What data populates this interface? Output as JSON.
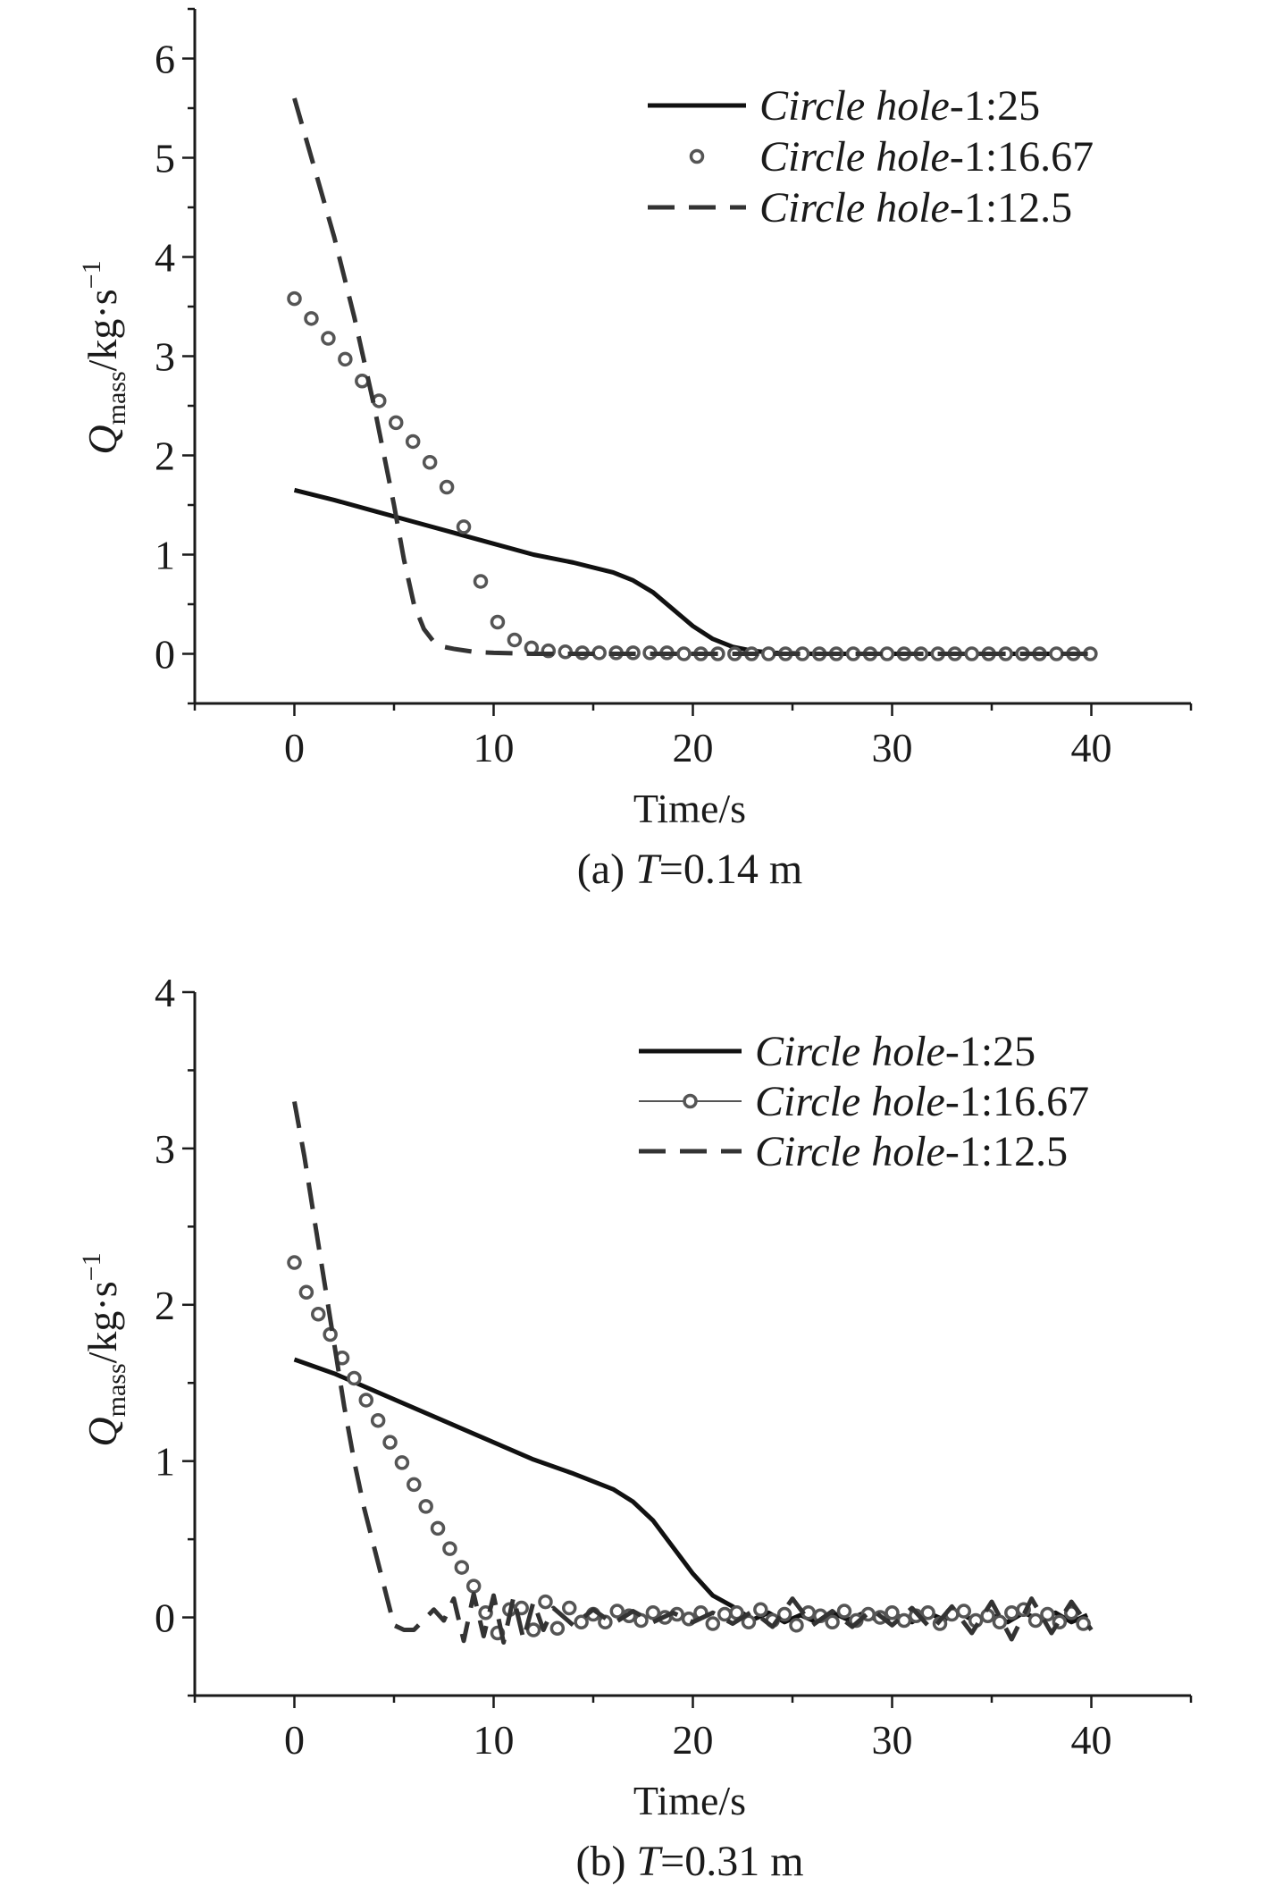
{
  "chart_data": [
    {
      "id": "a",
      "type": "line",
      "caption_prefix": "(a) ",
      "caption_var": "T",
      "caption_suffix": "=0.14 m",
      "xlabel": "Time/s",
      "ylabel": {
        "main": "Q",
        "sub": "mass",
        "unit": "/kg·s",
        "sup": "−1"
      },
      "xlim": [
        -5,
        45
      ],
      "ylim": [
        -0.5,
        6.5
      ],
      "xticks": [
        0,
        10,
        20,
        30,
        40
      ],
      "yticks": [
        0,
        1,
        2,
        3,
        4,
        5,
        6
      ],
      "legend_position": "top-right",
      "series": [
        {
          "name_italic": "Circle hole",
          "name_plain": "-1:25",
          "style": "solid",
          "x": [
            0,
            2,
            4,
            6,
            8,
            10,
            12,
            14,
            16,
            17,
            18,
            19,
            20,
            21,
            22,
            23,
            24,
            26,
            30,
            35,
            40
          ],
          "y": [
            1.65,
            1.55,
            1.44,
            1.33,
            1.22,
            1.11,
            1.0,
            0.92,
            0.82,
            0.74,
            0.62,
            0.45,
            0.28,
            0.15,
            0.07,
            0.03,
            0.01,
            0.0,
            0.0,
            0.0,
            0.0
          ]
        },
        {
          "name_italic": "Circle hole",
          "name_plain": "-1:16.67",
          "style": "circles",
          "x": [
            0,
            0.85,
            1.7,
            2.55,
            3.4,
            4.25,
            5.1,
            5.95,
            6.8,
            7.65,
            8.5,
            9.35,
            10.2,
            11.05,
            11.9,
            12.75,
            13.6,
            14.45,
            15.3,
            16.15,
            17,
            17.85,
            18.7,
            19.55,
            20.4,
            21.25,
            22.1,
            22.95,
            23.8,
            24.65,
            25.5,
            26.35,
            27.2,
            28.05,
            28.9,
            29.75,
            30.6,
            31.45,
            32.3,
            33.15,
            34,
            34.85,
            35.7,
            36.55,
            37.4,
            38.25,
            39.1,
            39.95
          ],
          "y": [
            3.58,
            3.38,
            3.18,
            2.97,
            2.75,
            2.55,
            2.33,
            2.14,
            1.93,
            1.68,
            1.28,
            0.73,
            0.32,
            0.14,
            0.06,
            0.03,
            0.02,
            0.01,
            0.01,
            0.01,
            0.01,
            0.01,
            0.01,
            0.0,
            0.0,
            0.0,
            0.0,
            0.0,
            0.0,
            0.0,
            0.0,
            0.0,
            0.0,
            0.0,
            0.0,
            0.0,
            0.0,
            0.0,
            0.0,
            0.0,
            0.0,
            0.0,
            0.0,
            0.0,
            0.0,
            0.0,
            0.0,
            0.0
          ]
        },
        {
          "name_italic": "Circle hole",
          "name_plain": "-1:12.5",
          "style": "dashed",
          "x": [
            0,
            1,
            2,
            3,
            4,
            5,
            5.5,
            6,
            6.5,
            7,
            7.5,
            8,
            9,
            10,
            12,
            16,
            20,
            25,
            30,
            35,
            40
          ],
          "y": [
            5.6,
            4.9,
            4.2,
            3.4,
            2.5,
            1.5,
            0.95,
            0.5,
            0.25,
            0.12,
            0.07,
            0.05,
            0.02,
            0.01,
            0.0,
            0.0,
            0.0,
            0.0,
            0.0,
            0.0,
            0.0
          ]
        }
      ]
    },
    {
      "id": "b",
      "type": "line",
      "caption_prefix": "(b) ",
      "caption_var": "T",
      "caption_suffix": "=0.31 m",
      "xlabel": "Time/s",
      "ylabel": {
        "main": "Q",
        "sub": "mass",
        "unit": "/kg·s",
        "sup": "−1"
      },
      "xlim": [
        -5,
        45
      ],
      "ylim": [
        -0.5,
        4
      ],
      "xticks": [
        0,
        10,
        20,
        30,
        40
      ],
      "yticks": [
        0,
        1,
        2,
        3,
        4
      ],
      "legend_position": "top-right",
      "series": [
        {
          "name_italic": "Circle hole",
          "name_plain": "-1:25",
          "style": "solid",
          "x": [
            0,
            2,
            4,
            6,
            8,
            10,
            12,
            14,
            16,
            17,
            18,
            19,
            20,
            21,
            22,
            23,
            24,
            26,
            30,
            35,
            40
          ],
          "y": [
            1.65,
            1.56,
            1.45,
            1.34,
            1.23,
            1.12,
            1.01,
            0.92,
            0.82,
            0.74,
            0.62,
            0.45,
            0.28,
            0.14,
            0.07,
            0.04,
            0.02,
            0.01,
            0.0,
            0.0,
            0.0
          ],
          "jitter_start": 23,
          "jitter_amp": 0.03
        },
        {
          "name_italic": "Circle hole",
          "name_plain": "-1:16.67",
          "style": "line-circles",
          "x": [
            0,
            0.6,
            1.2,
            1.8,
            2.4,
            3.0,
            3.6,
            4.2,
            4.8,
            5.4,
            6.0,
            6.6,
            7.2,
            7.8,
            8.4,
            9.0,
            9.6,
            10.2,
            10.8,
            11.4,
            12.0,
            12.6,
            13.2,
            13.8,
            14.4,
            15.0,
            15.6,
            16.2,
            16.8,
            17.4,
            18.0,
            18.6,
            19.2,
            19.8,
            20.4,
            21.0,
            21.6,
            22.2,
            22.8,
            23.4,
            24.0,
            24.6,
            25.2,
            25.8,
            26.4,
            27.0,
            27.6,
            28.2,
            28.8,
            29.4,
            30.0,
            30.6,
            31.2,
            31.8,
            32.4,
            33.0,
            33.6,
            34.2,
            34.8,
            35.4,
            36.0,
            36.6,
            37.2,
            37.8,
            38.4,
            39.0,
            39.6
          ],
          "y": [
            2.27,
            2.08,
            1.94,
            1.81,
            1.66,
            1.53,
            1.39,
            1.26,
            1.12,
            0.99,
            0.85,
            0.71,
            0.57,
            0.44,
            0.32,
            0.2,
            0.03,
            -0.1,
            0.05,
            0.06,
            -0.08,
            0.1,
            -0.07,
            0.06,
            -0.03,
            0.02,
            -0.03,
            0.04,
            0.01,
            -0.02,
            0.03,
            0.0,
            0.02,
            -0.01,
            0.03,
            -0.04,
            0.02,
            0.03,
            -0.03,
            0.05,
            -0.02,
            0.02,
            -0.05,
            0.03,
            0.01,
            -0.03,
            0.04,
            -0.02,
            0.02,
            0.0,
            0.03,
            -0.02,
            0.01,
            0.03,
            -0.04,
            0.02,
            0.04,
            -0.02,
            0.01,
            -0.03,
            0.03,
            0.05,
            -0.02,
            0.02,
            -0.03,
            0.03,
            -0.04
          ]
        },
        {
          "name_italic": "Circle hole",
          "name_plain": "-1:12.5",
          "style": "dashed",
          "x": [
            0,
            0.5,
            1,
            1.5,
            2,
            2.5,
            3,
            3.5,
            4,
            4.5,
            5,
            5.5,
            6,
            7,
            7.5,
            8,
            8.5,
            9,
            9.5,
            10,
            10.5,
            11,
            11.5,
            12,
            12.5,
            13,
            14,
            15,
            16,
            17,
            18,
            19,
            20,
            21,
            22,
            23,
            24,
            25,
            26,
            27,
            28,
            29,
            30,
            31,
            32,
            33,
            34,
            35,
            36,
            37,
            38,
            39,
            40
          ],
          "y": [
            3.3,
            2.95,
            2.55,
            2.15,
            1.75,
            1.35,
            1.0,
            0.7,
            0.45,
            0.2,
            -0.05,
            -0.08,
            -0.08,
            0.05,
            -0.02,
            0.12,
            -0.15,
            0.15,
            -0.12,
            0.14,
            -0.16,
            0.13,
            -0.14,
            0.1,
            -0.08,
            0.06,
            -0.05,
            0.05,
            -0.04,
            0.04,
            -0.03,
            0.03,
            -0.03,
            0.03,
            -0.04,
            0.04,
            -0.06,
            0.12,
            -0.05,
            0.04,
            -0.06,
            0.05,
            -0.05,
            0.06,
            -0.08,
            0.07,
            -0.1,
            0.1,
            -0.14,
            0.12,
            -0.1,
            0.1,
            -0.08
          ]
        }
      ]
    }
  ]
}
